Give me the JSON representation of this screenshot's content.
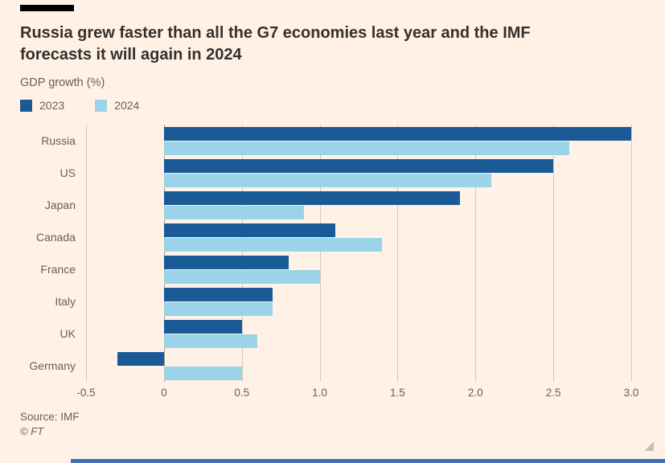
{
  "header": {
    "title": "Russia grew faster than all the G7 economies last year and the IMF forecasts it will again in 2024",
    "subtitle": "GDP growth (%)"
  },
  "chart_data": {
    "type": "bar",
    "orientation": "horizontal",
    "title": "Russia grew faster than all the G7 economies last year and the IMF forecasts it will again in 2024",
    "xlabel": "GDP growth (%)",
    "ylabel": "",
    "categories": [
      "Russia",
      "US",
      "Japan",
      "Canada",
      "France",
      "Italy",
      "UK",
      "Germany"
    ],
    "series": [
      {
        "name": "2023",
        "color": "#1a5a96",
        "values": [
          3.0,
          2.5,
          1.9,
          1.1,
          0.8,
          0.7,
          0.5,
          -0.3
        ]
      },
      {
        "name": "2024",
        "color": "#9bd4e9",
        "values": [
          2.6,
          2.1,
          0.9,
          1.4,
          1.0,
          0.7,
          0.6,
          0.5
        ]
      }
    ],
    "xlim": [
      -0.5,
      3.0
    ],
    "xticks": [
      -0.5,
      0,
      0.5,
      1.0,
      1.5,
      2.0,
      2.5,
      3.0
    ],
    "xtick_labels": [
      "-0.5",
      "0",
      "0.5",
      "1.0",
      "1.5",
      "2.0",
      "2.5",
      "3.0"
    ],
    "grid": true,
    "legend_position": "top-left"
  },
  "footer": {
    "source": "Source: IMF",
    "copyright": "© FT"
  },
  "theme": {
    "background": "#fff1e5",
    "text_dark": "#33302e",
    "text_muted": "#66605c",
    "gridline": "#d4c9bb",
    "scrollbar": "#4272b4"
  }
}
